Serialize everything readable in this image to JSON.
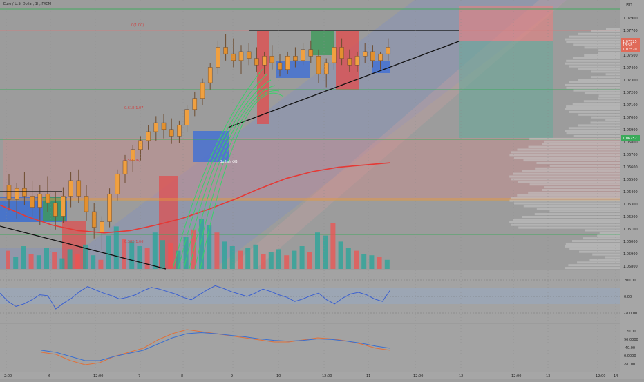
{
  "header": {
    "symbol": "Euro / U.S. Dollar, 1h, FXCM"
  },
  "price_axis": {
    "currency": "USD",
    "last_price": "1.07525",
    "countdown": "13:58",
    "bid_tag": "1.07520",
    "green_tag": "1.06752"
  },
  "annotations": {
    "fib_1": "0(1.00)",
    "fib_0618": "0.618(1.07)",
    "fib_05": "0.5(1.06)",
    "fib_0382": "0.382(1.06)",
    "breakout_label": "Bullish OB"
  },
  "chart_data": [
    {
      "type": "candlestick",
      "title": "Euro / U.S. Dollar, 1h, FXCM",
      "xlabel": "",
      "ylabel": "USD",
      "ylim": [
        1.0555,
        1.0792
      ],
      "x_tick_labels": [
        "2:00",
        "6",
        "12:00",
        "7",
        "8",
        "9",
        "10",
        "12:00",
        "11",
        "12:00",
        "12",
        "12:00",
        "13",
        "12:00",
        "14"
      ],
      "y_tick_labels": [
        "1.07900",
        "1.07700",
        "1.07600",
        "1.07500",
        "1.07400",
        "1.07300",
        "1.07200",
        "1.07100",
        "1.07000",
        "1.06900",
        "1.06800",
        "1.06700",
        "1.06600",
        "1.06500",
        "1.06400",
        "1.06300",
        "1.06200",
        "1.06100",
        "1.06000",
        "1.05900",
        "1.05800"
      ],
      "candles": [
        {
          "o": 1.0628,
          "h": 1.0638,
          "l": 1.0605,
          "c": 1.0615
        },
        {
          "o": 1.0615,
          "h": 1.063,
          "l": 1.0598,
          "c": 1.0625
        },
        {
          "o": 1.0625,
          "h": 1.064,
          "l": 1.061,
          "c": 1.0618
        },
        {
          "o": 1.0618,
          "h": 1.0632,
          "l": 1.06,
          "c": 1.0608
        },
        {
          "o": 1.0608,
          "h": 1.0628,
          "l": 1.0592,
          "c": 1.062
        },
        {
          "o": 1.062,
          "h": 1.0636,
          "l": 1.0604,
          "c": 1.0612
        },
        {
          "o": 1.0612,
          "h": 1.0622,
          "l": 1.0588,
          "c": 1.06
        },
        {
          "o": 1.06,
          "h": 1.0626,
          "l": 1.0594,
          "c": 1.0618
        },
        {
          "o": 1.0618,
          "h": 1.064,
          "l": 1.0608,
          "c": 1.0632
        },
        {
          "o": 1.0632,
          "h": 1.0642,
          "l": 1.0612,
          "c": 1.0618
        },
        {
          "o": 1.0618,
          "h": 1.0628,
          "l": 1.0596,
          "c": 1.0604
        },
        {
          "o": 1.0604,
          "h": 1.0612,
          "l": 1.058,
          "c": 1.059
        },
        {
          "o": 1.0585,
          "h": 1.06,
          "l": 1.057,
          "c": 1.0595
        },
        {
          "o": 1.0595,
          "h": 1.0625,
          "l": 1.059,
          "c": 1.062
        },
        {
          "o": 1.062,
          "h": 1.0642,
          "l": 1.0614,
          "c": 1.0638
        },
        {
          "o": 1.0638,
          "h": 1.0655,
          "l": 1.063,
          "c": 1.065
        },
        {
          "o": 1.065,
          "h": 1.0664,
          "l": 1.064,
          "c": 1.066
        },
        {
          "o": 1.066,
          "h": 1.0672,
          "l": 1.065,
          "c": 1.0668
        },
        {
          "o": 1.0668,
          "h": 1.0682,
          "l": 1.066,
          "c": 1.0676
        },
        {
          "o": 1.0676,
          "h": 1.069,
          "l": 1.0668,
          "c": 1.0684
        },
        {
          "o": 1.0684,
          "h": 1.0692,
          "l": 1.067,
          "c": 1.0678
        },
        {
          "o": 1.0678,
          "h": 1.0688,
          "l": 1.0665,
          "c": 1.0672
        },
        {
          "o": 1.0672,
          "h": 1.0686,
          "l": 1.0666,
          "c": 1.0682
        },
        {
          "o": 1.0682,
          "h": 1.07,
          "l": 1.0676,
          "c": 1.0696
        },
        {
          "o": 1.0696,
          "h": 1.0712,
          "l": 1.069,
          "c": 1.0706
        },
        {
          "o": 1.0706,
          "h": 1.0724,
          "l": 1.07,
          "c": 1.072
        },
        {
          "o": 1.072,
          "h": 1.0738,
          "l": 1.0714,
          "c": 1.0734
        },
        {
          "o": 1.0734,
          "h": 1.0758,
          "l": 1.0728,
          "c": 1.0752
        },
        {
          "o": 1.0752,
          "h": 1.0764,
          "l": 1.074,
          "c": 1.0746
        },
        {
          "o": 1.0746,
          "h": 1.076,
          "l": 1.0734,
          "c": 1.074
        },
        {
          "o": 1.074,
          "h": 1.0754,
          "l": 1.0728,
          "c": 1.0748
        },
        {
          "o": 1.0748,
          "h": 1.0756,
          "l": 1.0736,
          "c": 1.0742
        },
        {
          "o": 1.0742,
          "h": 1.0752,
          "l": 1.073,
          "c": 1.0736
        },
        {
          "o": 1.0736,
          "h": 1.0748,
          "l": 1.0728,
          "c": 1.0744
        },
        {
          "o": 1.0744,
          "h": 1.0754,
          "l": 1.0732,
          "c": 1.0738
        },
        {
          "o": 1.0738,
          "h": 1.0746,
          "l": 1.0726,
          "c": 1.0732
        },
        {
          "o": 1.0732,
          "h": 1.0748,
          "l": 1.0728,
          "c": 1.0744
        },
        {
          "o": 1.0744,
          "h": 1.0752,
          "l": 1.0734,
          "c": 1.074
        },
        {
          "o": 1.074,
          "h": 1.0756,
          "l": 1.0736,
          "c": 1.075
        },
        {
          "o": 1.075,
          "h": 1.0758,
          "l": 1.0738,
          "c": 1.0744
        },
        {
          "o": 1.0744,
          "h": 1.075,
          "l": 1.072,
          "c": 1.0728
        },
        {
          "o": 1.0728,
          "h": 1.0742,
          "l": 1.0716,
          "c": 1.0738
        },
        {
          "o": 1.0738,
          "h": 1.0758,
          "l": 1.0732,
          "c": 1.0752
        },
        {
          "o": 1.0752,
          "h": 1.076,
          "l": 1.0736,
          "c": 1.0742
        },
        {
          "o": 1.0742,
          "h": 1.075,
          "l": 1.073,
          "c": 1.0736
        },
        {
          "o": 1.0736,
          "h": 1.0748,
          "l": 1.073,
          "c": 1.0744
        },
        {
          "o": 1.0744,
          "h": 1.0756,
          "l": 1.0738,
          "c": 1.0748
        },
        {
          "o": 1.0748,
          "h": 1.0754,
          "l": 1.0734,
          "c": 1.074
        },
        {
          "o": 1.074,
          "h": 1.0748,
          "l": 1.0732,
          "c": 1.0746
        },
        {
          "o": 1.0746,
          "h": 1.076,
          "l": 1.074,
          "c": 1.0752
        }
      ],
      "series": [
        {
          "name": "",
          "color": "#e53935",
          "values": [
            1.061,
            1.06,
            1.0592,
            1.0587,
            1.0585,
            1.0587,
            1.0592,
            1.0598,
            1.0606,
            1.0615,
            1.0625,
            1.0634,
            1.064,
            1.0644,
            1.0646,
            1.0648
          ]
        },
        {
          "name": "",
          "color": "#000000",
          "values": [
            1.0645,
            1.0645
          ]
        }
      ],
      "volume": [
        12,
        8,
        15,
        10,
        9,
        14,
        11,
        7,
        13,
        10,
        16,
        9,
        6,
        22,
        28,
        20,
        18,
        15,
        14,
        24,
        19,
        17,
        12,
        21,
        26,
        33,
        29,
        24,
        18,
        15,
        12,
        14,
        16,
        10,
        11,
        13,
        9,
        12,
        15,
        11,
        24,
        22,
        30,
        18,
        14,
        12,
        10,
        9,
        8,
        6
      ],
      "volume_colors": [
        "#26a69a",
        "#ef5350"
      ],
      "cci_levels": [
        200,
        0,
        -200
      ],
      "cci_tick_labels": [
        "200.00",
        "0.00",
        "-200.00"
      ],
      "cci": [
        40,
        -60,
        -120,
        -90,
        -40,
        20,
        10,
        -150,
        -80,
        -20,
        60,
        120,
        80,
        40,
        10,
        -30,
        -10,
        20,
        70,
        110,
        90,
        60,
        30,
        -10,
        -40,
        20,
        80,
        130,
        100,
        60,
        30,
        0,
        40,
        90,
        60,
        20,
        -10,
        -60,
        -30,
        10,
        40,
        -40,
        -90,
        -20,
        30,
        50,
        20,
        -30,
        -60,
        80
      ],
      "rsi_tick_labels": [
        "120.00",
        "90.0000",
        "-40.00",
        "0.0000",
        "-90.00"
      ],
      "osc_a": [
        -20,
        -30,
        -60,
        -80,
        -70,
        -40,
        -20,
        0,
        40,
        70,
        90,
        80,
        70,
        60,
        50,
        40,
        30,
        30,
        40,
        50,
        45,
        35,
        20,
        0,
        -10
      ],
      "osc_b": [
        -10,
        -20,
        -40,
        -60,
        -60,
        -40,
        -25,
        -10,
        20,
        50,
        70,
        75,
        70,
        62,
        55,
        45,
        38,
        34,
        38,
        45,
        42,
        34,
        24,
        10,
        0
      ]
    }
  ]
}
